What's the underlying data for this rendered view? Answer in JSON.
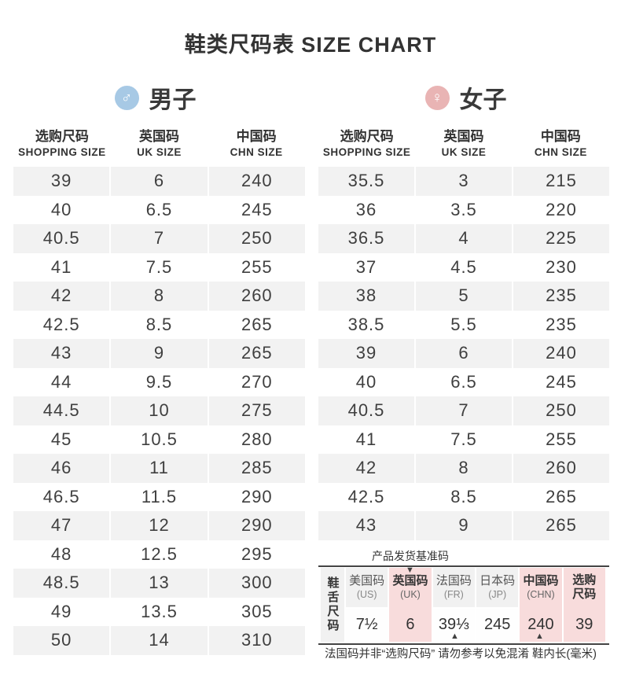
{
  "title": "鞋类尺码表 SIZE CHART",
  "colors": {
    "male_blue": "#a7c9e5",
    "female_pink": "#e9b4b4",
    "row_gray": "#f2f2f2",
    "cell_gray": "#f1f1f1",
    "highlight_pink": "#f8dcdc",
    "line_dark": "#444444",
    "text_dark": "#333333"
  },
  "chart_data": [
    {
      "type": "table",
      "name": "men",
      "label": "男子",
      "symbol": "♂",
      "columns": [
        {
          "zh": "选购尺码",
          "en": "SHOPPING SIZE"
        },
        {
          "zh": "英国码",
          "en": "UK SIZE"
        },
        {
          "zh": "中国码",
          "en": "CHN SIZE"
        }
      ],
      "rows": [
        [
          "39",
          "6",
          "240"
        ],
        [
          "40",
          "6.5",
          "245"
        ],
        [
          "40.5",
          "7",
          "250"
        ],
        [
          "41",
          "7.5",
          "255"
        ],
        [
          "42",
          "8",
          "260"
        ],
        [
          "42.5",
          "8.5",
          "265"
        ],
        [
          "43",
          "9",
          "265"
        ],
        [
          "44",
          "9.5",
          "270"
        ],
        [
          "44.5",
          "10",
          "275"
        ],
        [
          "45",
          "10.5",
          "280"
        ],
        [
          "46",
          "11",
          "285"
        ],
        [
          "46.5",
          "11.5",
          "290"
        ],
        [
          "47",
          "12",
          "290"
        ],
        [
          "48",
          "12.5",
          "295"
        ],
        [
          "48.5",
          "13",
          "300"
        ],
        [
          "49",
          "13.5",
          "305"
        ],
        [
          "50",
          "14",
          "310"
        ]
      ]
    },
    {
      "type": "table",
      "name": "women",
      "label": "女子",
      "symbol": "♀",
      "columns": [
        {
          "zh": "选购尺码",
          "en": "SHOPPING SIZE"
        },
        {
          "zh": "英国码",
          "en": "UK SIZE"
        },
        {
          "zh": "中国码",
          "en": "CHN SIZE"
        }
      ],
      "rows": [
        [
          "35.5",
          "3",
          "215"
        ],
        [
          "36",
          "3.5",
          "220"
        ],
        [
          "36.5",
          "4",
          "225"
        ],
        [
          "37",
          "4.5",
          "230"
        ],
        [
          "38",
          "5",
          "235"
        ],
        [
          "38.5",
          "5.5",
          "235"
        ],
        [
          "39",
          "6",
          "240"
        ],
        [
          "40",
          "6.5",
          "245"
        ],
        [
          "40.5",
          "7",
          "250"
        ],
        [
          "41",
          "7.5",
          "255"
        ],
        [
          "42",
          "8",
          "260"
        ],
        [
          "42.5",
          "8.5",
          "265"
        ],
        [
          "43",
          "9",
          "265"
        ]
      ]
    },
    {
      "type": "table",
      "name": "tongue-size",
      "caption": "产品发货基准码",
      "row_label": "鞋舌尺码",
      "columns": [
        {
          "zh": "美国码",
          "sub": "(US)",
          "value": "7½",
          "highlight": false,
          "sub_is_title": false
        },
        {
          "zh": "英国码",
          "sub": "(UK)",
          "value": "6",
          "highlight": true,
          "sub_is_title": false
        },
        {
          "zh": "法国码",
          "sub": "(FR)",
          "value": "39⅓",
          "highlight": false,
          "sub_is_title": false
        },
        {
          "zh": "日本码",
          "sub": "(JP)",
          "value": "245",
          "highlight": false,
          "sub_is_title": false
        },
        {
          "zh": "中国码",
          "sub": "(CHN)",
          "value": "240",
          "highlight": true,
          "sub_is_title": false
        },
        {
          "zh": "选购",
          "sub": "尺码",
          "value": "39",
          "highlight": true,
          "sub_is_title": true
        }
      ],
      "marker_down": "▼",
      "marker_up": "▲",
      "note_left": "法国码并非“选购尺码” 请勿参考以免混淆",
      "note_right": "鞋内长(毫米)"
    }
  ]
}
